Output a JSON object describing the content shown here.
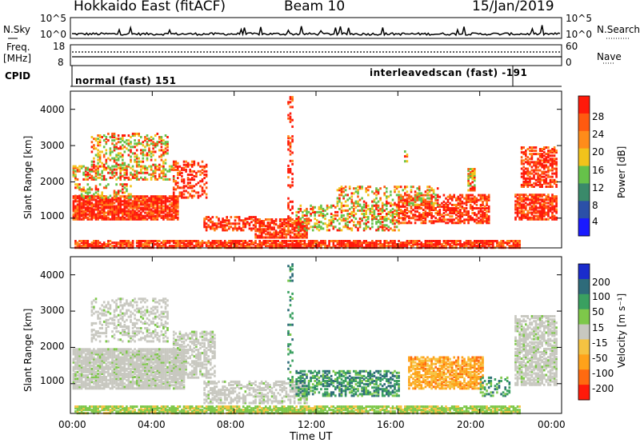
{
  "header": {
    "title": "Hokkaido East (fitACF)",
    "beam": "Beam 10",
    "date": "15/Jan/2019"
  },
  "strip_labels": {
    "nsky": "N.Sky",
    "freq_top": "Freq.",
    "freq_unit": "[MHz]",
    "cpid": "CPID",
    "nsearch": "N.Search",
    "nave": "Nave",
    "nsky_ticks": [
      "10^5",
      "10^0"
    ],
    "freq_ticks": [
      "18",
      "8"
    ],
    "nsearch_ticks": [
      "10^5",
      "10^0"
    ],
    "nave_ticks": [
      "60",
      "0"
    ],
    "cpid_segments": [
      "normal (fast) 151",
      "interleavedscan (fast) -191"
    ]
  },
  "chart_data": [
    {
      "type": "heatmap",
      "name": "power",
      "ylabel": "Slant Range [km]",
      "ytick_labels": [
        "1000",
        "2000",
        "3000",
        "4000"
      ],
      "yrange": [
        180,
        4500
      ],
      "colorbar_label": "Power [dB]",
      "colorbar_ticks": [
        "4",
        "8",
        "12",
        "16",
        "20",
        "24",
        "28"
      ],
      "colorbar_colors": [
        "#1a1aff",
        "#2b50a8",
        "#3a8a6a",
        "#66c24a",
        "#f2c31b",
        "#ff8c1a",
        "#ff5a10",
        "#ff1a0a"
      ],
      "range_features": [
        {
          "x": [
            0,
            5
          ],
          "range": [
            1100,
            1600
          ],
          "level": "strong"
        },
        {
          "x": [
            0,
            5.5
          ],
          "range": [
            2100,
            3300
          ],
          "level": "moderate"
        },
        {
          "x": [
            6.5,
            22
          ],
          "range": [
            300,
            1200
          ],
          "level": "strong"
        },
        {
          "x": [
            12,
            21
          ],
          "range": [
            1000,
            1700
          ],
          "level": "moderate"
        },
        {
          "x": [
            21.5,
            24
          ],
          "range": [
            1000,
            3000
          ],
          "level": "strong"
        }
      ]
    },
    {
      "type": "heatmap",
      "name": "velocity",
      "ylabel": "Slant Range [km]",
      "xlabel": "Time UT",
      "ytick_labels": [
        "1000",
        "2000",
        "3000",
        "4000"
      ],
      "xtick_labels": [
        "00:00",
        "04:00",
        "08:00",
        "12:00",
        "16:00",
        "20:00",
        "00:00"
      ],
      "colorbar_label": "Velocity [m s⁻¹]",
      "colorbar_ticks": [
        "-200",
        "-100",
        "-50",
        "-15",
        "15",
        "50",
        "100",
        "200"
      ],
      "colorbar_colors": [
        "#ff1a0a",
        "#ff6a10",
        "#ffa21a",
        "#f5c342",
        "#c8c8c0",
        "#7ec84a",
        "#3aa060",
        "#2e6b7a",
        "#1a2ccc"
      ],
      "range_features": [
        {
          "x": [
            0,
            7
          ],
          "range": [
            800,
            2000
          ],
          "value": "ground scatter"
        },
        {
          "x": [
            12,
            16
          ],
          "range": [
            800,
            1600
          ],
          "value": "positive"
        },
        {
          "x": [
            16.5,
            20
          ],
          "range": [
            900,
            1800
          ],
          "value": "negative"
        },
        {
          "x": [
            21.5,
            24
          ],
          "range": [
            1000,
            2800
          ],
          "value": "ground scatter"
        }
      ]
    }
  ],
  "axes": {
    "x_label": "Time UT",
    "x_ticks": [
      "00:00",
      "04:00",
      "08:00",
      "12:00",
      "16:00",
      "20:00",
      "00:00"
    ]
  }
}
